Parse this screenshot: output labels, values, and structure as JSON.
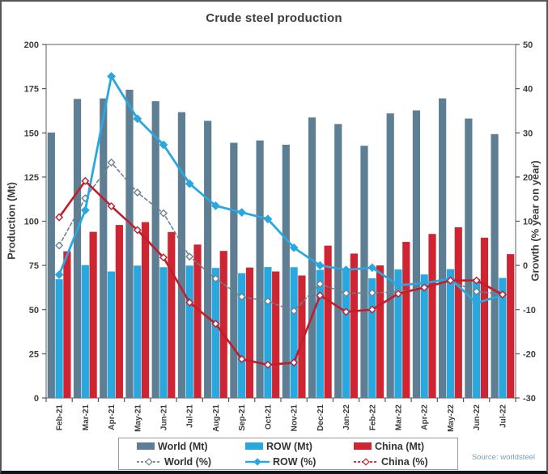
{
  "title": "Crude steel production",
  "source_note": "Source: worldsteel",
  "colors": {
    "world_bar": "#5d7e93",
    "row_bar": "#29a8df",
    "china_bar": "#cf2431",
    "world_line": "#6d8292",
    "row_line": "#29a8df",
    "china_line": "#c31d2b",
    "text": "#3d3d3d",
    "source_text": "#7d9cb4"
  },
  "chart_data": {
    "type": "combo-bar-line",
    "title": "Crude steel production",
    "ylabel_left": "Production (Mt)",
    "ylabel_right": "Growth (% year on year)",
    "grid": false,
    "legend_position": "bottom",
    "axes": {
      "left": {
        "min": 0,
        "max": 200,
        "ticks": [
          0,
          25,
          50,
          75,
          100,
          125,
          150,
          175,
          200
        ]
      },
      "right": {
        "min": -30,
        "max": 50,
        "ticks": [
          -30,
          -20,
          -10,
          0,
          10,
          20,
          30,
          40,
          50
        ]
      }
    },
    "categories": [
      "Feb-21",
      "Mar-21",
      "Apr-21",
      "May-21",
      "Jun-21",
      "Jul-21",
      "Aug-21",
      "Sep-21",
      "Oct-21",
      "Nov-21",
      "Dec-21",
      "Jan-22",
      "Feb-22",
      "Mar-22",
      "Apr-22",
      "May-22",
      "Jun-22",
      "Jul-22"
    ],
    "series": [
      {
        "name": "World (Mt)",
        "key": "world-mt",
        "type": "bar",
        "axis": "left",
        "color": "#5d7e93",
        "values": [
          150.2,
          169.2,
          169.5,
          174.4,
          167.9,
          161.7,
          156.8,
          144.4,
          145.7,
          143.3,
          158.7,
          155.0,
          142.7,
          161.0,
          162.7,
          169.5,
          158.1,
          149.3
        ]
      },
      {
        "name": "ROW (Mt)",
        "key": "row-mt",
        "type": "bar",
        "axis": "left",
        "color": "#29a8df",
        "values": [
          67.2,
          75.2,
          71.6,
          74.9,
          74.0,
          74.9,
          73.6,
          70.6,
          74.1,
          74.0,
          72.5,
          73.3,
          67.7,
          72.7,
          69.9,
          72.9,
          67.4,
          67.9
        ]
      },
      {
        "name": "China (Mt)",
        "key": "china-mt",
        "type": "bar",
        "axis": "left",
        "color": "#cf2431",
        "values": [
          83.0,
          94.0,
          97.9,
          99.5,
          93.9,
          86.8,
          83.2,
          73.8,
          71.6,
          69.3,
          86.2,
          81.7,
          75.0,
          88.3,
          92.8,
          96.6,
          90.7,
          81.4
        ]
      },
      {
        "name": "World (%)",
        "key": "world-pct",
        "type": "line",
        "axis": "right",
        "color": "#6d8292",
        "dash": "4,3",
        "marker": "open",
        "width": 1.6,
        "values": [
          4.5,
          15.2,
          23.3,
          16.5,
          11.8,
          2.0,
          -3.0,
          -7.1,
          -8.1,
          -10.3,
          -4.2,
          -6.3,
          -6.2,
          -6.0,
          -5.1,
          -3.5,
          -5.9,
          -6.5
        ]
      },
      {
        "name": "ROW (%)",
        "key": "row-pct",
        "type": "line",
        "axis": "right",
        "color": "#29a8df",
        "dash": "",
        "marker": "filled",
        "width": 2.8,
        "values": [
          -2.1,
          12.5,
          42.8,
          33.2,
          27.3,
          18.5,
          13.5,
          12.0,
          10.5,
          4.0,
          0.0,
          -1.0,
          -0.5,
          -4.5,
          -4.0,
          -3.0,
          -8.5,
          -6.7
        ]
      },
      {
        "name": "China (%)",
        "key": "china-pct",
        "type": "line",
        "axis": "right",
        "color": "#c31d2b",
        "dash": "",
        "marker": "open",
        "width": 2.6,
        "values": [
          10.9,
          19.1,
          13.4,
          8.0,
          1.8,
          -8.4,
          -13.2,
          -21.2,
          -22.5,
          -22.0,
          -6.8,
          -10.5,
          -10.0,
          -6.4,
          -5.0,
          -3.4,
          -3.4,
          -6.6
        ]
      }
    ],
    "legend": {
      "rows": [
        [
          {
            "label": "World (Mt)",
            "swatch": "bar",
            "color": "#5d7e93"
          },
          {
            "label": "ROW (Mt)",
            "swatch": "bar",
            "color": "#29a8df"
          },
          {
            "label": "China (Mt)",
            "swatch": "bar",
            "color": "#cf2431"
          }
        ],
        [
          {
            "label": "World (%)",
            "swatch": "line",
            "color": "#6d8292",
            "dash": "3,2",
            "marker": "open"
          },
          {
            "label": "ROW (%)",
            "swatch": "line",
            "color": "#29a8df",
            "dash": "",
            "marker": "filled"
          },
          {
            "label": "China (%)",
            "swatch": "line",
            "color": "#c31d2b",
            "dash": "3,2",
            "marker": "open"
          }
        ]
      ]
    }
  }
}
